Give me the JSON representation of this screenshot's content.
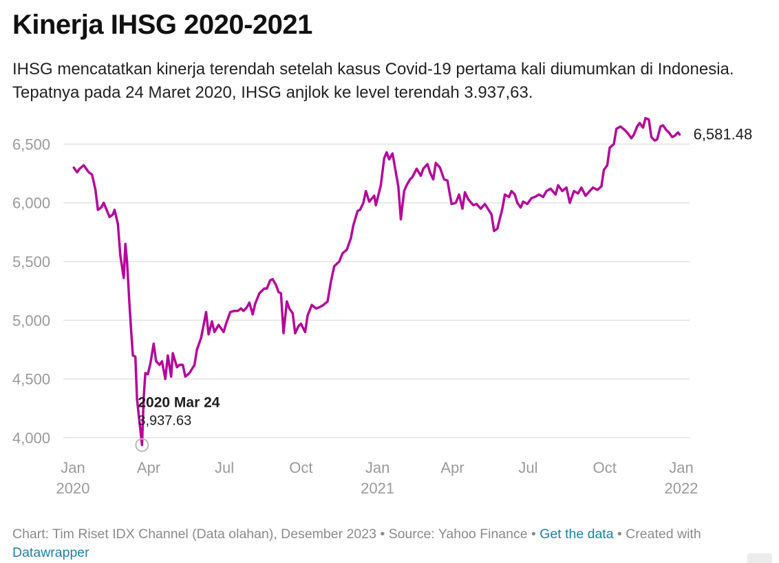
{
  "header": {
    "title": "Kinerja IHSG 2020-2021",
    "subtitle": "IHSG mencatatkan kinerja terendah setelah kasus Covid-19 pertama kali diumumkan di Indonesia. Tepatnya pada 24 Maret 2020, IHSG anjlok ke level terendah 3.937,63."
  },
  "footer": {
    "prefix": "Chart: Tim Riset IDX Channel (Data olahan), Desember 2023 • Source: Yahoo Finance • ",
    "get_data": "Get the data",
    "mid": " • Created with ",
    "datawrapper": "Datawrapper"
  },
  "colors": {
    "line": "#b5069b",
    "grid": "#e2e2e2",
    "axis_text": "#9a9a9a"
  },
  "chart_data": {
    "type": "line",
    "title": "Kinerja IHSG 2020-2021",
    "xlabel": "",
    "ylabel": "",
    "ylim": [
      3900,
      6760
    ],
    "xlim": [
      "2020-01-01",
      "2022-01-01"
    ],
    "grid": true,
    "y_ticks": [
      4000,
      4500,
      5000,
      5500,
      6000,
      6500
    ],
    "y_tick_labels": [
      "4,000",
      "4,500",
      "5,000",
      "5,500",
      "6,000",
      "6,500"
    ],
    "x_ticks": [
      {
        "date": "2020-01-01",
        "label": "Jan",
        "year": "2020"
      },
      {
        "date": "2020-04-01",
        "label": "Apr",
        "year": ""
      },
      {
        "date": "2020-07-01",
        "label": "Jul",
        "year": ""
      },
      {
        "date": "2020-10-01",
        "label": "Oct",
        "year": ""
      },
      {
        "date": "2021-01-01",
        "label": "Jan",
        "year": "2021"
      },
      {
        "date": "2021-04-01",
        "label": "Apr",
        "year": ""
      },
      {
        "date": "2021-07-01",
        "label": "Jul",
        "year": ""
      },
      {
        "date": "2021-10-01",
        "label": "Oct",
        "year": ""
      },
      {
        "date": "2022-01-01",
        "label": "Jan",
        "year": "2022"
      }
    ],
    "annotation": {
      "date": "2020-03-24",
      "label": "2020 Mar 24",
      "value_text": "3,937.63",
      "value": 3937.63
    },
    "last_value_label": "6,581.48",
    "series": [
      {
        "name": "IHSG",
        "points": [
          [
            "2020-01-02",
            6300
          ],
          [
            "2020-01-06",
            6260
          ],
          [
            "2020-01-09",
            6290
          ],
          [
            "2020-01-14",
            6320
          ],
          [
            "2020-01-20",
            6260
          ],
          [
            "2020-01-24",
            6240
          ],
          [
            "2020-01-28",
            6110
          ],
          [
            "2020-01-31",
            5940
          ],
          [
            "2020-02-04",
            5960
          ],
          [
            "2020-02-07",
            6000
          ],
          [
            "2020-02-11",
            5930
          ],
          [
            "2020-02-14",
            5880
          ],
          [
            "2020-02-18",
            5900
          ],
          [
            "2020-02-20",
            5940
          ],
          [
            "2020-02-24",
            5820
          ],
          [
            "2020-02-27",
            5550
          ],
          [
            "2020-03-02",
            5360
          ],
          [
            "2020-03-04",
            5650
          ],
          [
            "2020-03-06",
            5500
          ],
          [
            "2020-03-09",
            5130
          ],
          [
            "2020-03-11",
            4900
          ],
          [
            "2020-03-13",
            4700
          ],
          [
            "2020-03-16",
            4690
          ],
          [
            "2020-03-18",
            4330
          ],
          [
            "2020-03-20",
            4200
          ],
          [
            "2020-03-24",
            3937.63
          ],
          [
            "2020-03-26",
            4340
          ],
          [
            "2020-03-28",
            4550
          ],
          [
            "2020-03-31",
            4540
          ],
          [
            "2020-04-03",
            4630
          ],
          [
            "2020-04-07",
            4800
          ],
          [
            "2020-04-10",
            4650
          ],
          [
            "2020-04-14",
            4620
          ],
          [
            "2020-04-17",
            4650
          ],
          [
            "2020-04-21",
            4500
          ],
          [
            "2020-04-24",
            4700
          ],
          [
            "2020-04-28",
            4520
          ],
          [
            "2020-04-30",
            4720
          ],
          [
            "2020-05-05",
            4600
          ],
          [
            "2020-05-08",
            4620
          ],
          [
            "2020-05-12",
            4620
          ],
          [
            "2020-05-15",
            4520
          ],
          [
            "2020-05-20",
            4550
          ],
          [
            "2020-05-26",
            4620
          ],
          [
            "2020-05-29",
            4750
          ],
          [
            "2020-06-03",
            4850
          ],
          [
            "2020-06-06",
            4960
          ],
          [
            "2020-06-09",
            5070
          ],
          [
            "2020-06-12",
            4880
          ],
          [
            "2020-06-16",
            4990
          ],
          [
            "2020-06-19",
            4900
          ],
          [
            "2020-06-24",
            4960
          ],
          [
            "2020-06-30",
            4900
          ],
          [
            "2020-07-03",
            4970
          ],
          [
            "2020-07-08",
            5070
          ],
          [
            "2020-07-13",
            5080
          ],
          [
            "2020-07-17",
            5080
          ],
          [
            "2020-07-21",
            5100
          ],
          [
            "2020-07-24",
            5080
          ],
          [
            "2020-07-28",
            5110
          ],
          [
            "2020-07-31",
            5150
          ],
          [
            "2020-08-04",
            5050
          ],
          [
            "2020-08-07",
            5140
          ],
          [
            "2020-08-12",
            5230
          ],
          [
            "2020-08-18",
            5270
          ],
          [
            "2020-08-21",
            5270
          ],
          [
            "2020-08-25",
            5340
          ],
          [
            "2020-08-28",
            5350
          ],
          [
            "2020-09-01",
            5300
          ],
          [
            "2020-09-04",
            5240
          ],
          [
            "2020-09-07",
            5230
          ],
          [
            "2020-09-10",
            4890
          ],
          [
            "2020-09-14",
            5160
          ],
          [
            "2020-09-17",
            5100
          ],
          [
            "2020-09-21",
            5060
          ],
          [
            "2020-09-24",
            4890
          ],
          [
            "2020-09-28",
            4950
          ],
          [
            "2020-10-01",
            4970
          ],
          [
            "2020-10-06",
            4900
          ],
          [
            "2020-10-09",
            5040
          ],
          [
            "2020-10-14",
            5130
          ],
          [
            "2020-10-19",
            5100
          ],
          [
            "2020-10-23",
            5110
          ],
          [
            "2020-10-28",
            5130
          ],
          [
            "2020-11-02",
            5160
          ],
          [
            "2020-11-06",
            5330
          ],
          [
            "2020-11-10",
            5460
          ],
          [
            "2020-11-16",
            5500
          ],
          [
            "2020-11-20",
            5570
          ],
          [
            "2020-11-25",
            5600
          ],
          [
            "2020-11-30",
            5700
          ],
          [
            "2020-12-03",
            5810
          ],
          [
            "2020-12-08",
            5930
          ],
          [
            "2020-12-11",
            5940
          ],
          [
            "2020-12-15",
            6000
          ],
          [
            "2020-12-18",
            6100
          ],
          [
            "2020-12-22",
            6010
          ],
          [
            "2020-12-28",
            6060
          ],
          [
            "2020-12-30",
            5980
          ],
          [
            "2021-01-05",
            6150
          ],
          [
            "2021-01-09",
            6380
          ],
          [
            "2021-01-12",
            6430
          ],
          [
            "2021-01-15",
            6370
          ],
          [
            "2021-01-19",
            6420
          ],
          [
            "2021-01-22",
            6300
          ],
          [
            "2021-01-26",
            6140
          ],
          [
            "2021-01-29",
            5860
          ],
          [
            "2021-02-02",
            6100
          ],
          [
            "2021-02-05",
            6150
          ],
          [
            "2021-02-09",
            6200
          ],
          [
            "2021-02-12",
            6220
          ],
          [
            "2021-02-17",
            6290
          ],
          [
            "2021-02-22",
            6230
          ],
          [
            "2021-02-25",
            6290
          ],
          [
            "2021-03-02",
            6330
          ],
          [
            "2021-03-05",
            6260
          ],
          [
            "2021-03-09",
            6200
          ],
          [
            "2021-03-12",
            6340
          ],
          [
            "2021-03-17",
            6300
          ],
          [
            "2021-03-22",
            6200
          ],
          [
            "2021-03-26",
            6190
          ],
          [
            "2021-03-31",
            5990
          ],
          [
            "2021-04-05",
            6000
          ],
          [
            "2021-04-09",
            6070
          ],
          [
            "2021-04-13",
            5950
          ],
          [
            "2021-04-16",
            6090
          ],
          [
            "2021-04-20",
            6030
          ],
          [
            "2021-04-26",
            5980
          ],
          [
            "2021-04-30",
            5990
          ],
          [
            "2021-05-05",
            5950
          ],
          [
            "2021-05-10",
            5990
          ],
          [
            "2021-05-18",
            5900
          ],
          [
            "2021-05-21",
            5760
          ],
          [
            "2021-05-25",
            5780
          ],
          [
            "2021-05-31",
            5950
          ],
          [
            "2021-06-03",
            6070
          ],
          [
            "2021-06-08",
            6050
          ],
          [
            "2021-06-11",
            6100
          ],
          [
            "2021-06-15",
            6070
          ],
          [
            "2021-06-18",
            6000
          ],
          [
            "2021-06-22",
            5960
          ],
          [
            "2021-06-25",
            6010
          ],
          [
            "2021-06-30",
            5990
          ],
          [
            "2021-07-05",
            6040
          ],
          [
            "2021-07-09",
            6050
          ],
          [
            "2021-07-14",
            6070
          ],
          [
            "2021-07-19",
            6050
          ],
          [
            "2021-07-23",
            6100
          ],
          [
            "2021-07-28",
            6120
          ],
          [
            "2021-08-03",
            6070
          ],
          [
            "2021-08-06",
            6150
          ],
          [
            "2021-08-11",
            6100
          ],
          [
            "2021-08-16",
            6130
          ],
          [
            "2021-08-20",
            6000
          ],
          [
            "2021-08-25",
            6100
          ],
          [
            "2021-08-30",
            6080
          ],
          [
            "2021-09-03",
            6130
          ],
          [
            "2021-09-08",
            6060
          ],
          [
            "2021-09-13",
            6100
          ],
          [
            "2021-09-17",
            6130
          ],
          [
            "2021-09-22",
            6110
          ],
          [
            "2021-09-27",
            6140
          ],
          [
            "2021-09-30",
            6280
          ],
          [
            "2021-10-04",
            6320
          ],
          [
            "2021-10-07",
            6470
          ],
          [
            "2021-10-12",
            6500
          ],
          [
            "2021-10-15",
            6630
          ],
          [
            "2021-10-20",
            6650
          ],
          [
            "2021-10-25",
            6620
          ],
          [
            "2021-10-29",
            6590
          ],
          [
            "2021-11-02",
            6550
          ],
          [
            "2021-11-05",
            6580
          ],
          [
            "2021-11-09",
            6650
          ],
          [
            "2021-11-12",
            6680
          ],
          [
            "2021-11-16",
            6640
          ],
          [
            "2021-11-19",
            6720
          ],
          [
            "2021-11-23",
            6710
          ],
          [
            "2021-11-26",
            6560
          ],
          [
            "2021-11-30",
            6530
          ],
          [
            "2021-12-03",
            6540
          ],
          [
            "2021-12-07",
            6650
          ],
          [
            "2021-12-10",
            6660
          ],
          [
            "2021-12-14",
            6620
          ],
          [
            "2021-12-17",
            6600
          ],
          [
            "2021-12-21",
            6560
          ],
          [
            "2021-12-24",
            6570
          ],
          [
            "2021-12-28",
            6600
          ],
          [
            "2021-12-30",
            6581.48
          ]
        ]
      }
    ]
  }
}
